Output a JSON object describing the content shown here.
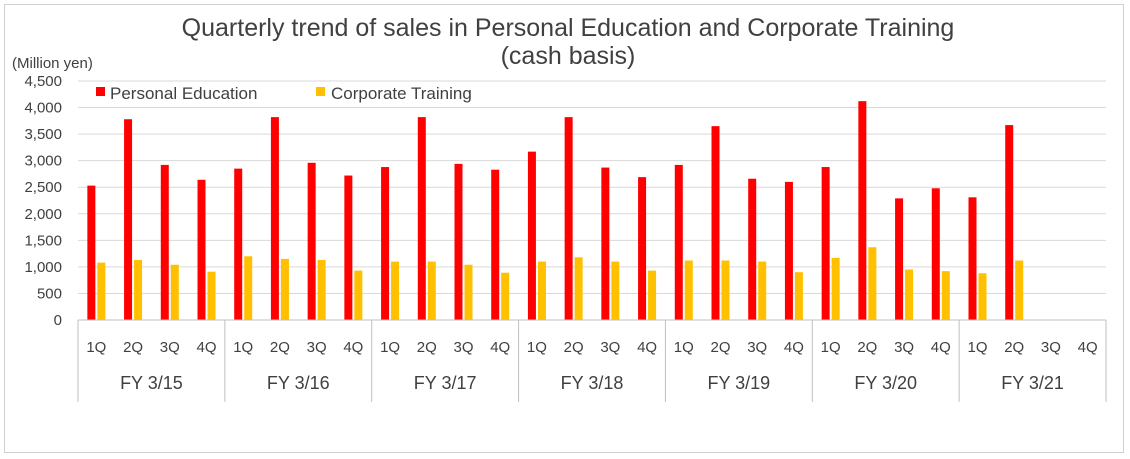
{
  "chart_data": {
    "type": "bar",
    "title": "Quarterly trend of sales in Personal Education and Corporate Training",
    "subtitle": "(cash basis)",
    "ylabel": "(Million yen)",
    "ylim": [
      0,
      4500
    ],
    "yticks": [
      0,
      500,
      1000,
      1500,
      2000,
      2500,
      3000,
      3500,
      4000,
      4500
    ],
    "ytick_labels": [
      "0",
      "500",
      "1,000",
      "1,500",
      "2,000",
      "2,500",
      "3,000",
      "3,500",
      "4,000",
      "4,500"
    ],
    "grid": true,
    "legend_position": "top-left",
    "quarters": [
      "1Q",
      "2Q",
      "3Q",
      "4Q"
    ],
    "fiscal_years": [
      "FY 3/15",
      "FY 3/16",
      "FY 3/17",
      "FY 3/18",
      "FY 3/19",
      "FY 3/20",
      "FY 3/21"
    ],
    "series": [
      {
        "name": "Personal Education",
        "color": "#ff0000",
        "values": [
          2530,
          3780,
          2920,
          2640,
          2850,
          3820,
          2960,
          2720,
          2880,
          3820,
          2940,
          2830,
          3170,
          3820,
          2870,
          2690,
          2920,
          3650,
          2660,
          2600,
          2880,
          4120,
          2290,
          2480,
          2310,
          3670,
          null,
          null
        ]
      },
      {
        "name": "Corporate Training",
        "color": "#ffc000",
        "values": [
          1080,
          1130,
          1040,
          910,
          1200,
          1150,
          1130,
          930,
          1100,
          1100,
          1040,
          890,
          1100,
          1180,
          1100,
          930,
          1120,
          1120,
          1100,
          900,
          1170,
          1370,
          950,
          920,
          880,
          1120,
          null,
          null
        ]
      }
    ]
  }
}
